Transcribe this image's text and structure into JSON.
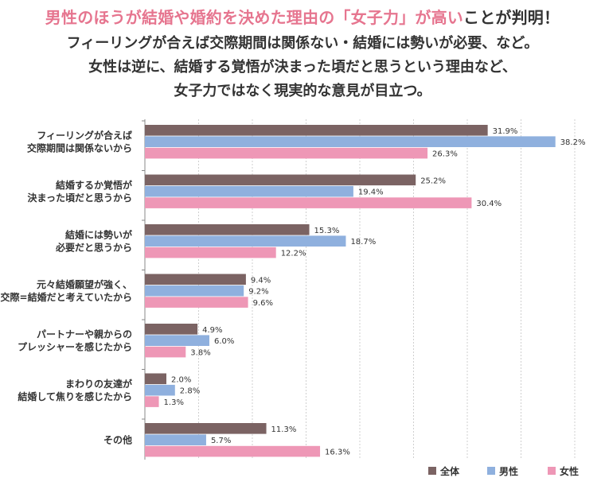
{
  "header": {
    "title_part1": "男性のほうが結婚や婚約を決めた理由の「女子力」が高い",
    "title_part2": "ことが判明！",
    "subtitle_lines": [
      "フィーリングが合えば交際期間は関係ない・結婚には勢いが必要、など。",
      "女性は逆に、結婚する覚悟が決まった頃だと思うという理由など、",
      "女子力ではなく現実的な意見が目立つ。"
    ]
  },
  "colors": {
    "title_accent": "#e6758f",
    "series": [
      "#7b6363",
      "#8fb0de",
      "#ee97b6"
    ]
  },
  "chart_data": {
    "type": "bar",
    "orientation": "horizontal",
    "categories": [
      [
        "フィーリングが合えば",
        "交際期間は関係ないから"
      ],
      [
        "結婚するか覚悟が",
        "決まった頃だと思うから"
      ],
      [
        "結婚には勢いが",
        "必要だと思うから"
      ],
      [
        "元々結婚願望が強く、",
        "交際=結婚だと考えていたから"
      ],
      [
        "パートナーや親からの",
        "プレッシャーを感じたから"
      ],
      [
        "まわりの友達が",
        "結婚して焦りを感じたから"
      ],
      [
        "その他"
      ]
    ],
    "series": [
      {
        "name": "全体",
        "values": [
          31.9,
          25.2,
          15.3,
          9.4,
          4.9,
          2.0,
          11.3
        ],
        "labels": [
          "31.9%",
          "25.2%",
          "15.3%",
          "9.4%",
          "4.9%",
          "2.0%",
          "11.3%"
        ]
      },
      {
        "name": "男性",
        "values": [
          38.2,
          19.4,
          18.7,
          9.2,
          6.0,
          2.8,
          5.7
        ],
        "labels": [
          "38.2%",
          "19.4%",
          "18.7%",
          "9.2%",
          "6.0%",
          "2.8%",
          "5.7%"
        ]
      },
      {
        "name": "女性",
        "values": [
          26.3,
          30.4,
          12.2,
          9.6,
          3.8,
          1.3,
          16.3
        ],
        "labels": [
          "26.3%",
          "30.4%",
          "12.2%",
          "9.6%",
          "3.8%",
          "1.3%",
          "16.3%"
        ]
      }
    ],
    "xlim": [
      0,
      40
    ],
    "grid": true,
    "legend_position": "bottom-right"
  }
}
